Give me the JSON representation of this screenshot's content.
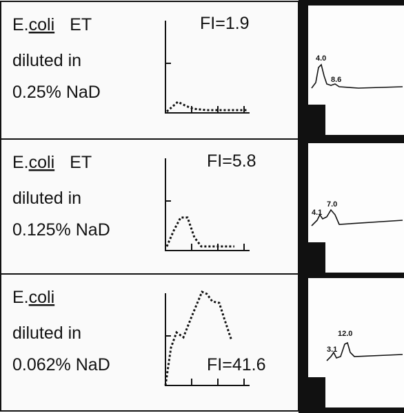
{
  "panels": [
    {
      "genus": "E.",
      "species": "coli",
      "suffix": "ET",
      "line2": "diluted in",
      "line3": "0.25% NaD",
      "fi": "FI=1.9",
      "peaks": [
        "4.0",
        "8.6"
      ]
    },
    {
      "genus": "E.",
      "species": "coli",
      "suffix": "ET",
      "line2": "diluted in",
      "line3": "0.125% NaD",
      "fi": "FI=5.8",
      "peaks": [
        "4.1",
        "7.0"
      ]
    },
    {
      "genus": "E.",
      "species": "coli",
      "line2": "diluted in",
      "line3": "0.062% NaD",
      "fi": "FI=41.6",
      "peaks": [
        "3.1",
        "12.0"
      ]
    }
  ]
}
